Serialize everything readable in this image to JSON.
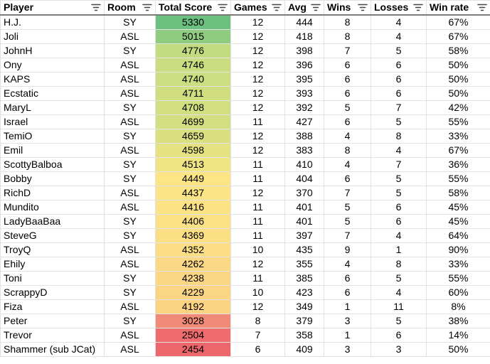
{
  "columns": [
    "Player",
    "Room",
    "Total Score",
    "Games",
    "Avg",
    "Wins",
    "Losses",
    "Win rate"
  ],
  "score_colors": {
    "5330": "#6cc080",
    "5015": "#8fcc7f",
    "4776": "#c3dc80",
    "4746": "#cadd80",
    "4740": "#cbde80",
    "4711": "#d0de80",
    "4708": "#d1df80",
    "4699": "#d3df80",
    "4659": "#dae081",
    "4598": "#e4e282",
    "4513": "#f1e483",
    "4449": "#fbe585",
    "4437": "#fbe485",
    "4416": "#fbe285",
    "4406": "#fbe185",
    "4369": "#fbdf85",
    "4352": "#fbde85",
    "4262": "#fbd885",
    "4238": "#fad685",
    "4229": "#fad584",
    "4192": "#fad383",
    "3028": "#f18a76",
    "2504": "#ee6b6e",
    "2454": "#ec676c"
  },
  "rows": [
    {
      "player": "H.J.",
      "room": "SY",
      "score": "5330",
      "games": "12",
      "avg": "444",
      "wins": "8",
      "losses": "4",
      "rate": "67%"
    },
    {
      "player": "Joli",
      "room": "ASL",
      "score": "5015",
      "games": "12",
      "avg": "418",
      "wins": "8",
      "losses": "4",
      "rate": "67%"
    },
    {
      "player": "JohnH",
      "room": "SY",
      "score": "4776",
      "games": "12",
      "avg": "398",
      "wins": "7",
      "losses": "5",
      "rate": "58%"
    },
    {
      "player": "Ony",
      "room": "ASL",
      "score": "4746",
      "games": "12",
      "avg": "396",
      "wins": "6",
      "losses": "6",
      "rate": "50%"
    },
    {
      "player": "KAPS",
      "room": "ASL",
      "score": "4740",
      "games": "12",
      "avg": "395",
      "wins": "6",
      "losses": "6",
      "rate": "50%"
    },
    {
      "player": "Ecstatic",
      "room": "ASL",
      "score": "4711",
      "games": "12",
      "avg": "393",
      "wins": "6",
      "losses": "6",
      "rate": "50%"
    },
    {
      "player": "MaryL",
      "room": "SY",
      "score": "4708",
      "games": "12",
      "avg": "392",
      "wins": "5",
      "losses": "7",
      "rate": "42%"
    },
    {
      "player": "Israel",
      "room": "ASL",
      "score": "4699",
      "games": "11",
      "avg": "427",
      "wins": "6",
      "losses": "5",
      "rate": "55%"
    },
    {
      "player": "TemiO",
      "room": "SY",
      "score": "4659",
      "games": "12",
      "avg": "388",
      "wins": "4",
      "losses": "8",
      "rate": "33%"
    },
    {
      "player": "Emil",
      "room": "ASL",
      "score": "4598",
      "games": "12",
      "avg": "383",
      "wins": "8",
      "losses": "4",
      "rate": "67%"
    },
    {
      "player": "ScottyBalboa",
      "room": "SY",
      "score": "4513",
      "games": "11",
      "avg": "410",
      "wins": "4",
      "losses": "7",
      "rate": "36%"
    },
    {
      "player": "Bobby",
      "room": "SY",
      "score": "4449",
      "games": "11",
      "avg": "404",
      "wins": "6",
      "losses": "5",
      "rate": "55%"
    },
    {
      "player": "RichD",
      "room": "ASL",
      "score": "4437",
      "games": "12",
      "avg": "370",
      "wins": "7",
      "losses": "5",
      "rate": "58%"
    },
    {
      "player": "Mundito",
      "room": "ASL",
      "score": "4416",
      "games": "11",
      "avg": "401",
      "wins": "5",
      "losses": "6",
      "rate": "45%"
    },
    {
      "player": "LadyBaaBaa",
      "room": "SY",
      "score": "4406",
      "games": "11",
      "avg": "401",
      "wins": "5",
      "losses": "6",
      "rate": "45%"
    },
    {
      "player": "SteveG",
      "room": "SY",
      "score": "4369",
      "games": "11",
      "avg": "397",
      "wins": "7",
      "losses": "4",
      "rate": "64%"
    },
    {
      "player": "TroyQ",
      "room": "ASL",
      "score": "4352",
      "games": "10",
      "avg": "435",
      "wins": "9",
      "losses": "1",
      "rate": "90%"
    },
    {
      "player": "Ehily",
      "room": "ASL",
      "score": "4262",
      "games": "12",
      "avg": "355",
      "wins": "4",
      "losses": "8",
      "rate": "33%"
    },
    {
      "player": "Toni",
      "room": "SY",
      "score": "4238",
      "games": "11",
      "avg": "385",
      "wins": "6",
      "losses": "5",
      "rate": "55%"
    },
    {
      "player": "ScrappyD",
      "room": "SY",
      "score": "4229",
      "games": "10",
      "avg": "423",
      "wins": "6",
      "losses": "4",
      "rate": "60%"
    },
    {
      "player": "Fiza",
      "room": "ASL",
      "score": "4192",
      "games": "12",
      "avg": "349",
      "wins": "1",
      "losses": "11",
      "rate": "8%"
    },
    {
      "player": "Peter",
      "room": "SY",
      "score": "3028",
      "games": "8",
      "avg": "379",
      "wins": "3",
      "losses": "5",
      "rate": "38%"
    },
    {
      "player": "Trevor",
      "room": "ASL",
      "score": "2504",
      "games": "7",
      "avg": "358",
      "wins": "1",
      "losses": "6",
      "rate": "14%"
    },
    {
      "player": "Shammer (sub JCat)",
      "room": "ASL",
      "score": "2454",
      "games": "6",
      "avg": "409",
      "wins": "3",
      "losses": "3",
      "rate": "50%"
    }
  ]
}
